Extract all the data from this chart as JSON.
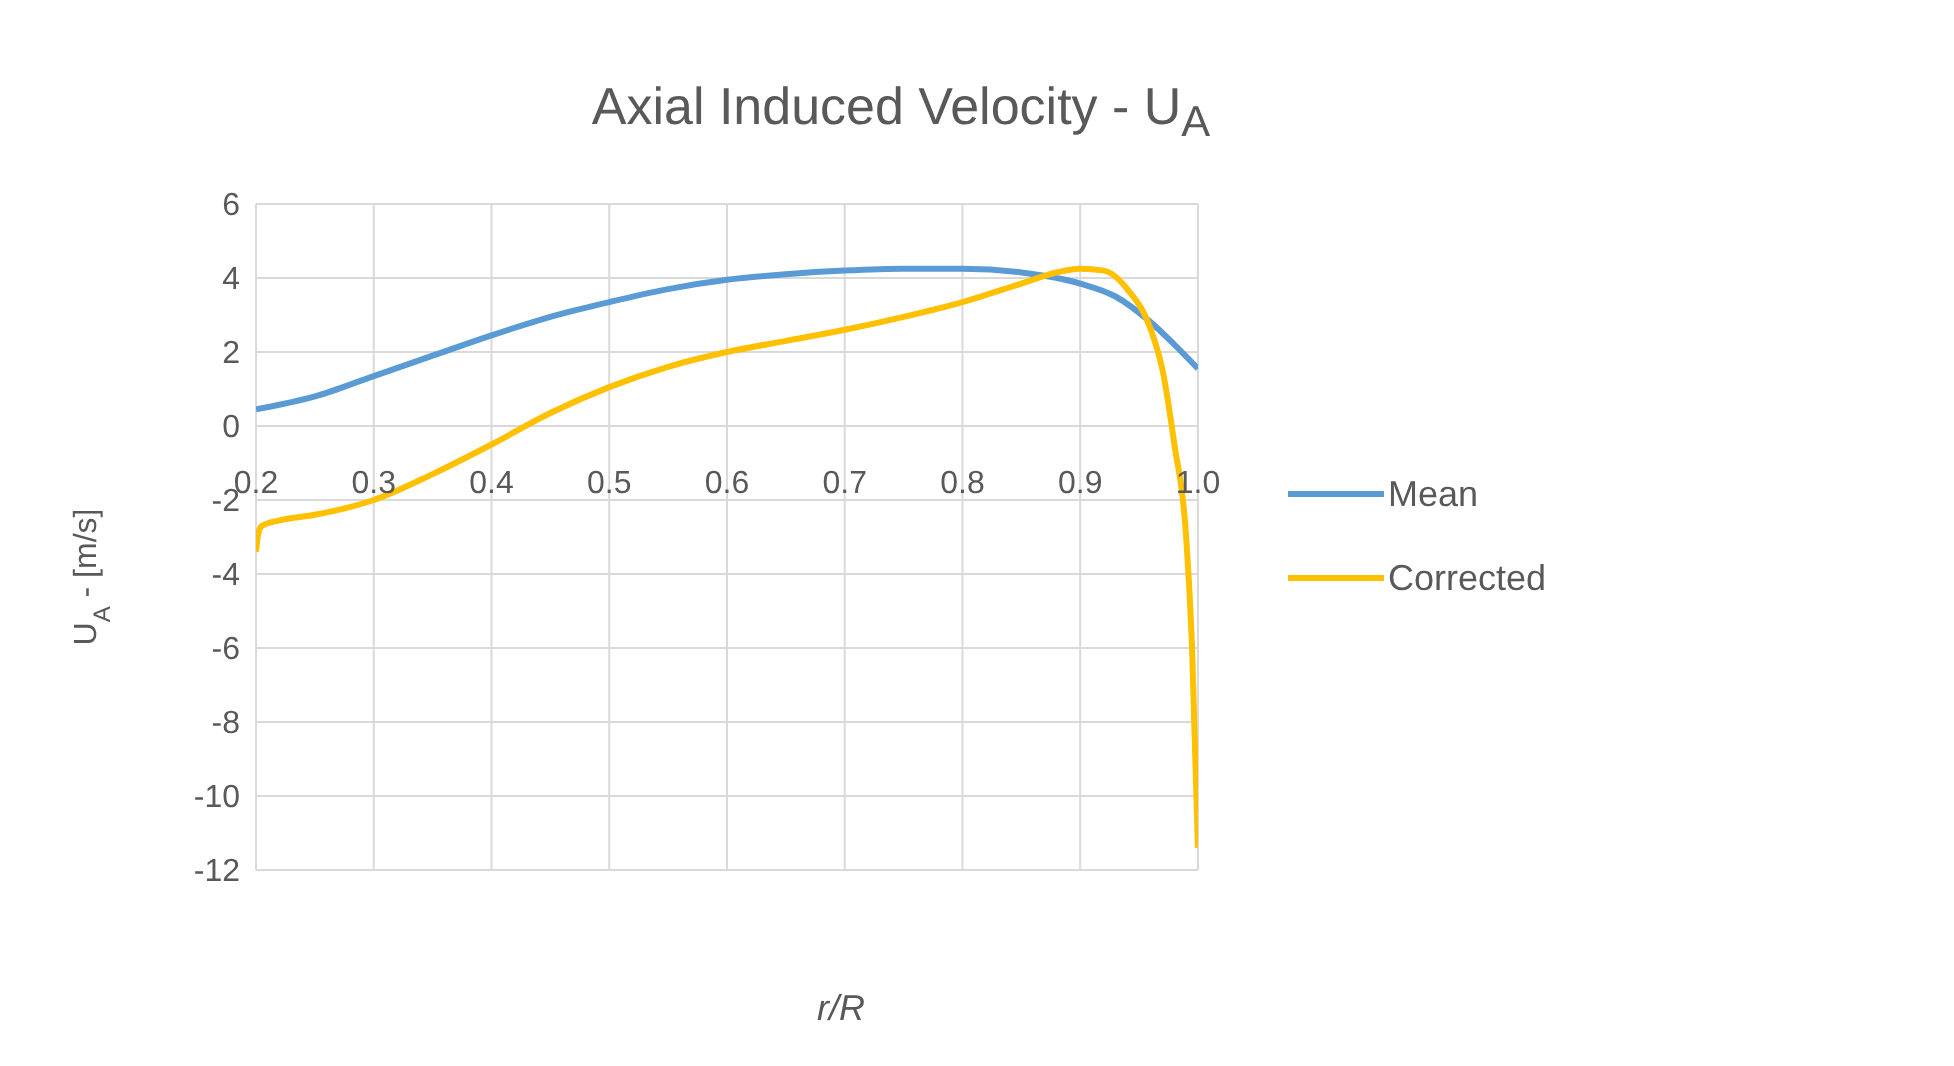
{
  "chart_data": {
    "type": "line",
    "title": "Axial Induced Velocity - U$_{A}$",
    "xlabel": "r/R",
    "ylabel": "U$_{A}$ - [m/s]",
    "xlim": [
      0.2,
      1.0
    ],
    "xticks": [
      {
        "value": 0.2,
        "label": "0.2"
      },
      0.3,
      0.4,
      0.5,
      0.6,
      0.7,
      0.8,
      0.9,
      {
        "value": 1.0,
        "label": "1.0"
      }
    ],
    "ylim": [
      -12,
      6
    ],
    "yticks": [
      -12,
      -10,
      -8,
      -6,
      -4,
      -2,
      0,
      2,
      4,
      6
    ],
    "grid": true,
    "legend": "right",
    "marker": "none",
    "line_style": "solid",
    "series": [
      {
        "name": "Mean",
        "color": "#5b9bd5",
        "x": [
          0.2,
          0.25,
          0.3,
          0.35,
          0.4,
          0.45,
          0.5,
          0.55,
          0.6,
          0.65,
          0.7,
          0.75,
          0.8,
          0.85,
          0.9,
          0.93,
          0.96,
          0.98,
          1.0
        ],
        "values": [
          0.45,
          0.8,
          1.35,
          1.9,
          2.45,
          2.95,
          3.35,
          3.7,
          3.95,
          4.1,
          4.2,
          4.25,
          4.25,
          4.15,
          3.85,
          3.5,
          2.8,
          2.2,
          1.55
        ]
      },
      {
        "name": "Corrected",
        "color": "#ffc000",
        "x": [
          0.2,
          0.202,
          0.205,
          0.22,
          0.25,
          0.3,
          0.35,
          0.4,
          0.45,
          0.5,
          0.55,
          0.6,
          0.65,
          0.7,
          0.75,
          0.8,
          0.85,
          0.88,
          0.9,
          0.92,
          0.94,
          0.96,
          0.97,
          0.98,
          0.99,
          0.995,
          1.0
        ],
        "values": [
          -3.4,
          -2.9,
          -2.7,
          -2.55,
          -2.4,
          -2.0,
          -1.3,
          -0.5,
          0.35,
          1.05,
          1.6,
          2.0,
          2.3,
          2.6,
          2.95,
          3.35,
          3.85,
          4.15,
          4.25,
          4.2,
          3.7,
          2.6,
          1.5,
          -0.5,
          -3,
          -6,
          -11.4
        ]
      }
    ]
  }
}
